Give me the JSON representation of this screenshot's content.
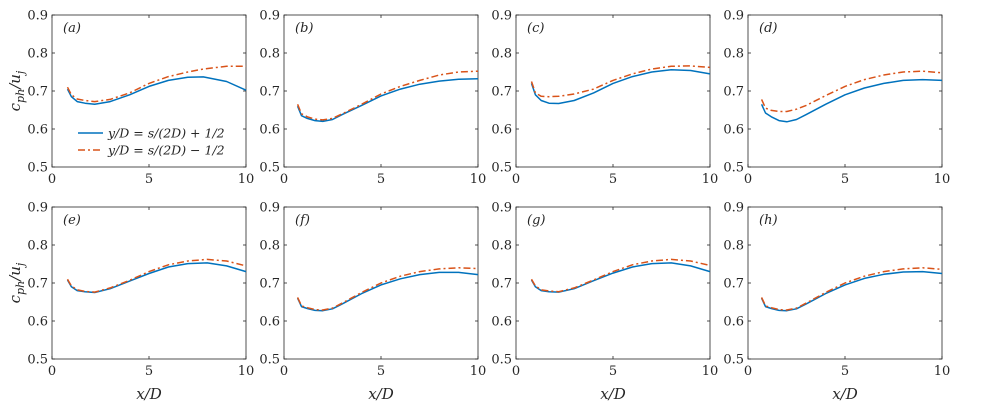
{
  "chart_data": {
    "type": "line",
    "layout": "2x4 grid",
    "xlabel": "x/D",
    "ylabel": "c_ph/u_j",
    "xlim": [
      0,
      10
    ],
    "ylim": [
      0.5,
      0.9
    ],
    "xticks": [
      "0",
      "5",
      "10"
    ],
    "yticks": [
      "0.5",
      "0.6",
      "0.7",
      "0.8",
      "0.9"
    ],
    "legend": {
      "placement": "lower-left of panel (a)",
      "entries": [
        "y/D = s/(2D) + 1/2",
        "y/D = s/(2D) − 1/2"
      ]
    },
    "series_styles": [
      {
        "name": "y/D = s/(2D) + 1/2",
        "color": "#0072BD",
        "dash": "solid"
      },
      {
        "name": "y/D = s/(2D) − 1/2",
        "color": "#D95319",
        "dash": "dash-dot"
      }
    ],
    "panels": [
      {
        "label": "(a)",
        "x": [
          0.8,
          1.0,
          1.3,
          1.7,
          2.2,
          3,
          4,
          5,
          6,
          7,
          7.8,
          9,
          10
        ],
        "series": [
          {
            "name": "y/D = s/(2D) + 1/2",
            "values": [
              0.705,
              0.685,
              0.672,
              0.668,
              0.665,
              0.672,
              0.69,
              0.712,
              0.728,
              0.736,
              0.737,
              0.725,
              0.702
            ]
          },
          {
            "name": "y/D = s/(2D) − 1/2",
            "values": [
              0.71,
              0.69,
              0.679,
              0.675,
              0.672,
              0.678,
              0.695,
              0.72,
              0.738,
              0.75,
              0.758,
              0.765,
              0.765
            ]
          }
        ]
      },
      {
        "label": "(b)",
        "x": [
          0.7,
          0.9,
          1.2,
          1.6,
          2.0,
          2.5,
          3,
          4,
          5,
          6,
          7,
          8,
          9,
          10
        ],
        "series": [
          {
            "name": "y/D = s/(2D) + 1/2",
            "values": [
              0.66,
              0.635,
              0.628,
              0.622,
              0.62,
              0.625,
              0.638,
              0.662,
              0.687,
              0.705,
              0.718,
              0.726,
              0.731,
              0.732
            ]
          },
          {
            "name": "y/D = s/(2D) − 1/2",
            "values": [
              0.665,
              0.64,
              0.632,
              0.626,
              0.624,
              0.628,
              0.64,
              0.665,
              0.692,
              0.712,
              0.728,
              0.742,
              0.75,
              0.752
            ]
          }
        ]
      },
      {
        "label": "(c)",
        "x": [
          0.8,
          1.0,
          1.3,
          1.7,
          2.2,
          3,
          4,
          5,
          6,
          7,
          8,
          9,
          10
        ],
        "series": [
          {
            "name": "y/D = s/(2D) + 1/2",
            "values": [
              0.72,
              0.69,
              0.675,
              0.668,
              0.667,
              0.675,
              0.695,
              0.72,
              0.738,
              0.75,
              0.756,
              0.754,
              0.745
            ]
          },
          {
            "name": "y/D = s/(2D) − 1/2",
            "values": [
              0.725,
              0.695,
              0.686,
              0.685,
              0.686,
              0.692,
              0.705,
              0.728,
              0.745,
              0.758,
              0.765,
              0.766,
              0.762
            ]
          }
        ]
      },
      {
        "label": "(d)",
        "x": [
          0.7,
          0.9,
          1.2,
          1.6,
          2.0,
          2.5,
          3,
          4,
          5,
          6,
          7,
          8,
          9,
          10
        ],
        "series": [
          {
            "name": "y/D = s/(2D) + 1/2",
            "values": [
              0.665,
              0.642,
              0.632,
              0.622,
              0.619,
              0.625,
              0.638,
              0.665,
              0.69,
              0.708,
              0.72,
              0.728,
              0.73,
              0.728
            ]
          },
          {
            "name": "y/D = s/(2D) − 1/2",
            "values": [
              0.678,
              0.655,
              0.649,
              0.646,
              0.646,
              0.652,
              0.662,
              0.688,
              0.712,
              0.73,
              0.742,
              0.75,
              0.752,
              0.748
            ]
          }
        ]
      },
      {
        "label": "(e)",
        "x": [
          0.8,
          1.0,
          1.3,
          1.7,
          2.2,
          3,
          4,
          5,
          6,
          7,
          8,
          9,
          10
        ],
        "series": [
          {
            "name": "y/D = s/(2D) + 1/2",
            "values": [
              0.708,
              0.69,
              0.68,
              0.677,
              0.675,
              0.685,
              0.705,
              0.725,
              0.742,
              0.751,
              0.753,
              0.745,
              0.73
            ]
          },
          {
            "name": "y/D = s/(2D) − 1/2",
            "values": [
              0.71,
              0.692,
              0.682,
              0.678,
              0.676,
              0.687,
              0.707,
              0.73,
              0.748,
              0.758,
              0.762,
              0.758,
              0.745
            ]
          }
        ]
      },
      {
        "label": "(f)",
        "x": [
          0.7,
          0.9,
          1.2,
          1.6,
          2.0,
          2.5,
          3,
          4,
          5,
          6,
          7,
          8,
          9,
          10
        ],
        "series": [
          {
            "name": "y/D = s/(2D) + 1/2",
            "values": [
              0.66,
              0.638,
              0.633,
              0.628,
              0.627,
              0.632,
              0.645,
              0.672,
              0.695,
              0.711,
              0.722,
              0.728,
              0.728,
              0.722
            ]
          },
          {
            "name": "y/D = s/(2D) − 1/2",
            "values": [
              0.662,
              0.64,
              0.635,
              0.63,
              0.629,
              0.634,
              0.647,
              0.675,
              0.7,
              0.718,
              0.73,
              0.737,
              0.74,
              0.738
            ]
          }
        ]
      },
      {
        "label": "(g)",
        "x": [
          0.8,
          1.0,
          1.3,
          1.7,
          2.2,
          3,
          4,
          5,
          6,
          7,
          8,
          9,
          10
        ],
        "series": [
          {
            "name": "y/D = s/(2D) + 1/2",
            "values": [
              0.708,
              0.69,
              0.68,
              0.677,
              0.676,
              0.685,
              0.706,
              0.726,
              0.742,
              0.751,
              0.753,
              0.745,
              0.73
            ]
          },
          {
            "name": "y/D = s/(2D) − 1/2",
            "values": [
              0.71,
              0.692,
              0.682,
              0.679,
              0.677,
              0.687,
              0.708,
              0.73,
              0.748,
              0.758,
              0.762,
              0.758,
              0.746
            ]
          }
        ]
      },
      {
        "label": "(h)",
        "x": [
          0.7,
          0.9,
          1.2,
          1.6,
          2.0,
          2.5,
          3,
          4,
          5,
          6,
          7,
          8,
          9,
          10
        ],
        "series": [
          {
            "name": "y/D = s/(2D) + 1/2",
            "values": [
              0.66,
              0.638,
              0.633,
              0.628,
              0.627,
              0.632,
              0.645,
              0.672,
              0.695,
              0.712,
              0.723,
              0.729,
              0.73,
              0.725
            ]
          },
          {
            "name": "y/D = s/(2D) − 1/2",
            "values": [
              0.662,
              0.64,
              0.635,
              0.63,
              0.629,
              0.634,
              0.647,
              0.675,
              0.7,
              0.718,
              0.73,
              0.737,
              0.74,
              0.736
            ]
          }
        ]
      }
    ]
  }
}
